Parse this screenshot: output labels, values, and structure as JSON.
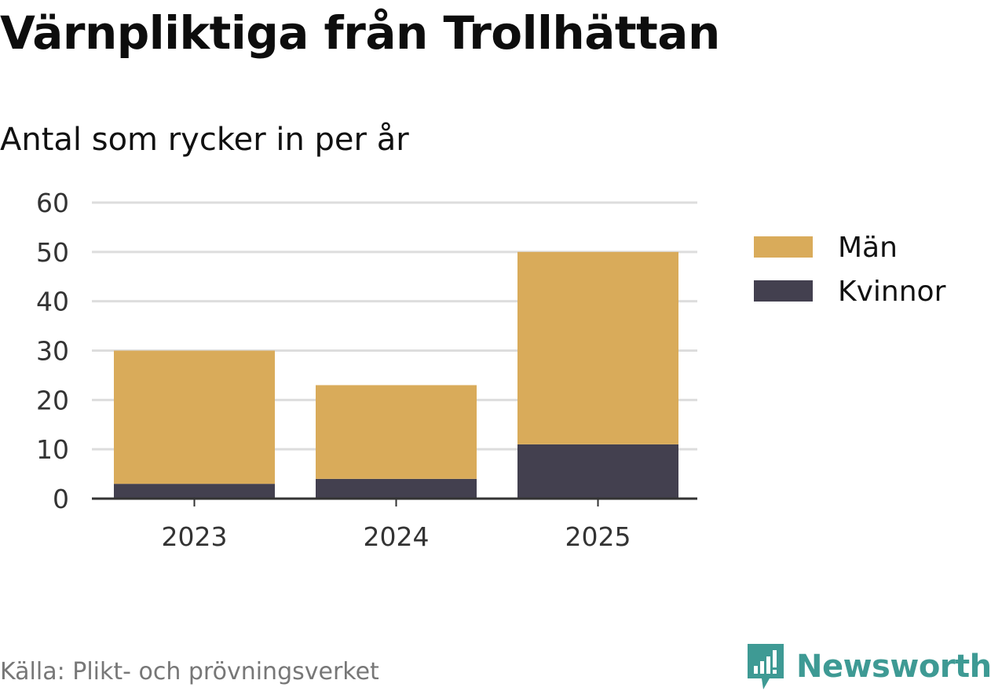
{
  "title": "Värnpliktiga från Trollhättan",
  "subtitle": "Antal som rycker in per år",
  "source": "Källa: Plikt- och prövningsverket",
  "brand": "Newsworthy",
  "colors": {
    "man": "#d9ab5a",
    "kvinnor": "#43404f",
    "grid": "#dddddd",
    "axis": "#333333",
    "brand": "#3e9a94"
  },
  "chart_data": {
    "type": "bar",
    "stacked": true,
    "categories": [
      "2023",
      "2024",
      "2025"
    ],
    "series": [
      {
        "name": "Kvinnor",
        "values": [
          3,
          4,
          11
        ]
      },
      {
        "name": "Män",
        "values": [
          27,
          19,
          39
        ]
      }
    ],
    "legend": [
      "Män",
      "Kvinnor"
    ],
    "ylim": [
      0,
      60
    ],
    "yticks": [
      0,
      10,
      20,
      30,
      40,
      50,
      60
    ],
    "grid": true,
    "legend_position": "right"
  }
}
